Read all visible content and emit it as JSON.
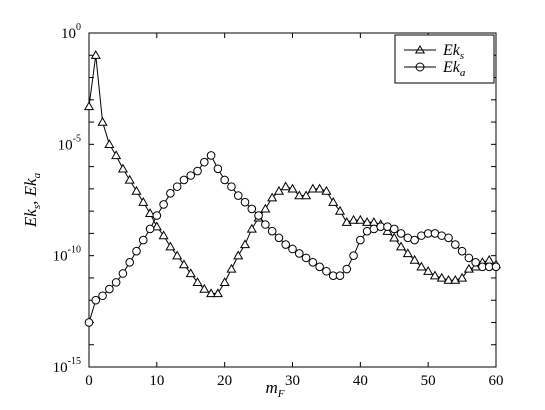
{
  "chart_data": {
    "type": "line",
    "title": "",
    "xlabel": {
      "main": "m",
      "sub": "F"
    },
    "ylabel": {
      "text": "Ek_s, Ek_a"
    },
    "xlim": [
      0,
      60
    ],
    "ylim_log10": [
      -15,
      0
    ],
    "yscale": "log",
    "grid": false,
    "legend_position": "top-right",
    "x_ticks": [
      0,
      10,
      20,
      30,
      40,
      50,
      60
    ],
    "y_ticks": [
      {
        "base": "10",
        "exp": "0",
        "log10": 0
      },
      {
        "base": "10",
        "exp": "-5",
        "log10": -5
      },
      {
        "base": "10",
        "exp": "-10",
        "log10": -10
      },
      {
        "base": "10",
        "exp": "-15",
        "log10": -15
      }
    ],
    "x": [
      0,
      1,
      2,
      3,
      4,
      5,
      6,
      7,
      8,
      9,
      10,
      11,
      12,
      13,
      14,
      15,
      16,
      17,
      18,
      19,
      20,
      21,
      22,
      23,
      24,
      25,
      26,
      27,
      28,
      29,
      30,
      31,
      32,
      33,
      34,
      35,
      36,
      37,
      38,
      39,
      40,
      41,
      42,
      43,
      44,
      45,
      46,
      47,
      48,
      49,
      50,
      51,
      52,
      53,
      54,
      55,
      56,
      57,
      58,
      59,
      60
    ],
    "series": [
      {
        "name": "Ek_s",
        "name_main": "Ek",
        "name_sub": "s",
        "marker": "triangle",
        "values_log10": [
          -3.3,
          -1.0,
          -4.0,
          -5.0,
          -5.5,
          -6.1,
          -6.6,
          -7.1,
          -7.6,
          -8.1,
          -8.7,
          -9.1,
          -9.6,
          -10.0,
          -10.4,
          -10.8,
          -11.2,
          -11.5,
          -11.7,
          -11.7,
          -11.2,
          -10.6,
          -10.0,
          -9.5,
          -8.8,
          -8.3,
          -7.9,
          -7.4,
          -7.1,
          -6.9,
          -7.0,
          -7.3,
          -7.3,
          -7.0,
          -7.0,
          -7.1,
          -7.6,
          -8.0,
          -8.5,
          -8.4,
          -8.4,
          -8.5,
          -8.5,
          -8.6,
          -8.9,
          -9.2,
          -9.6,
          -9.9,
          -10.2,
          -10.5,
          -10.7,
          -10.9,
          -11.0,
          -11.1,
          -11.1,
          -11.0,
          -10.6,
          -10.5,
          -10.3,
          -10.2,
          -10.4
        ]
      },
      {
        "name": "Ek_a",
        "name_main": "Ek",
        "name_sub": "a",
        "marker": "circle",
        "values_log10": [
          -13.0,
          -12.0,
          -11.8,
          -11.5,
          -11.2,
          -10.8,
          -10.3,
          -9.8,
          -9.3,
          -8.8,
          -8.2,
          -7.7,
          -7.2,
          -6.9,
          -6.6,
          -6.4,
          -6.2,
          -5.8,
          -5.5,
          -6.1,
          -6.6,
          -6.9,
          -7.3,
          -7.6,
          -7.9,
          -8.2,
          -8.6,
          -8.9,
          -9.2,
          -9.5,
          -9.7,
          -9.9,
          -10.1,
          -10.3,
          -10.5,
          -10.7,
          -10.9,
          -10.9,
          -10.6,
          -10.0,
          -9.3,
          -8.9,
          -8.8,
          -8.7,
          -8.7,
          -8.8,
          -9.0,
          -9.2,
          -9.3,
          -9.1,
          -9.0,
          -9.0,
          -9.1,
          -9.2,
          -9.5,
          -9.8,
          -10.1,
          -10.3,
          -10.5,
          -10.5,
          -10.5
        ]
      }
    ]
  }
}
